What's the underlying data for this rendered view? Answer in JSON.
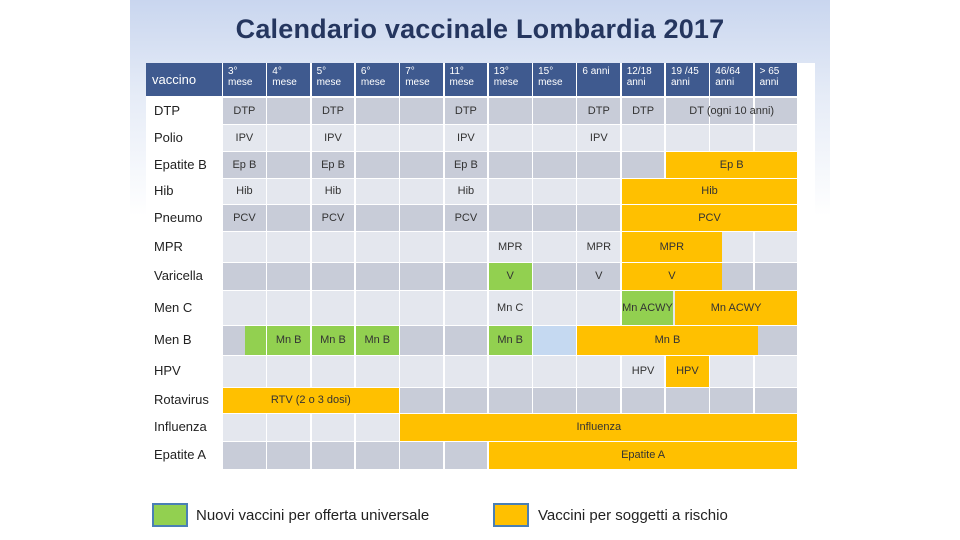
{
  "title": "Calendario vaccinale Lombardia 2017",
  "header": {
    "first": "vaccino",
    "columns": [
      [
        "3°",
        "mese"
      ],
      [
        "4°",
        "mese"
      ],
      [
        "5°",
        "mese"
      ],
      [
        "6°",
        "mese"
      ],
      [
        "7°",
        "mese"
      ],
      [
        "11°",
        "mese"
      ],
      [
        "13°",
        "mese"
      ],
      [
        "15°",
        "mese"
      ],
      [
        "6 anni",
        ""
      ],
      [
        "12/18",
        "anni"
      ],
      [
        "19 /45",
        "anni"
      ],
      [
        "46/64",
        "anni"
      ],
      [
        "> 65",
        "anni"
      ]
    ]
  },
  "rows": [
    {
      "label": "DTP",
      "cells": [
        {
          "text": "DTP",
          "col": 0,
          "span": 1
        },
        {
          "text": "DTP",
          "col": 2,
          "span": 1
        },
        {
          "text": "DTP",
          "col": 5,
          "span": 1
        },
        {
          "text": "DTP",
          "col": 8,
          "span": 1
        },
        {
          "text": "DTP",
          "col": 9,
          "span": 1
        },
        {
          "text": "DT (ogni 10 anni)",
          "col": 10,
          "span": 3
        }
      ]
    },
    {
      "label": "Polio",
      "cells": [
        {
          "text": "IPV",
          "col": 0,
          "span": 1
        },
        {
          "text": "IPV",
          "col": 2,
          "span": 1
        },
        {
          "text": "IPV",
          "col": 5,
          "span": 1
        },
        {
          "text": "IPV",
          "col": 8,
          "span": 1
        }
      ]
    },
    {
      "label": "Epatite B",
      "cells": [
        {
          "text": "Ep B",
          "col": 0,
          "span": 1
        },
        {
          "text": "Ep B",
          "col": 2,
          "span": 1
        },
        {
          "text": "Ep B",
          "col": 5,
          "span": 1
        },
        {
          "text": "Ep B",
          "col": 10,
          "span": 3,
          "fill": "orange"
        }
      ]
    },
    {
      "label": "Hib",
      "cells": [
        {
          "text": "Hib",
          "col": 0,
          "span": 1
        },
        {
          "text": "Hib",
          "col": 2,
          "span": 1
        },
        {
          "text": "Hib",
          "col": 5,
          "span": 1
        },
        {
          "text": "Hib",
          "col": 9,
          "span": 4,
          "fill": "orange"
        }
      ]
    },
    {
      "label": "Pneumo",
      "cells": [
        {
          "text": "PCV",
          "col": 0,
          "span": 1
        },
        {
          "text": "PCV",
          "col": 2,
          "span": 1
        },
        {
          "text": "PCV",
          "col": 5,
          "span": 1
        },
        {
          "text": "PCV",
          "col": 9,
          "span": 4,
          "fill": "orange"
        }
      ]
    },
    {
      "label": "MPR",
      "cells": [
        {
          "text": "MPR",
          "col": 6,
          "span": 1
        },
        {
          "text": "MPR",
          "col": 8,
          "span": 1
        },
        {
          "text": "MPR",
          "col": 9,
          "span": 2.3,
          "fill": "orange"
        }
      ]
    },
    {
      "label": "Varicella",
      "cells": [
        {
          "text": "V",
          "col": 6,
          "span": 1,
          "fill": "green"
        },
        {
          "text": "V",
          "col": 8,
          "span": 1
        },
        {
          "text": "V",
          "col": 9,
          "span": 2.3,
          "fill": "orange"
        }
      ]
    },
    {
      "label": "Men C",
      "cells": [
        {
          "text": "Mn C",
          "col": 6,
          "span": 1
        },
        {
          "text": "Mn ACWY",
          "col": 9,
          "span": 1.2,
          "fill": "green"
        },
        {
          "text": "Mn ACWY",
          "col": 10.2,
          "span": 2.8,
          "fill": "orange"
        }
      ]
    },
    {
      "label": "Men B",
      "cells": [
        {
          "text": "",
          "col": 0.5,
          "span": 0.5,
          "fill": "green"
        },
        {
          "text": "Mn B",
          "col": 1,
          "span": 1,
          "fill": "green"
        },
        {
          "text": "Mn B",
          "col": 2,
          "span": 1,
          "fill": "green"
        },
        {
          "text": "Mn B",
          "col": 3,
          "span": 1,
          "fill": "green"
        },
        {
          "text": "Mn B",
          "col": 6,
          "span": 1,
          "fill": "green"
        },
        {
          "text": "",
          "col": 7,
          "span": 1,
          "fill": "blue"
        },
        {
          "text": "Mn B",
          "col": 8,
          "span": 4.1,
          "fill": "orange"
        }
      ]
    },
    {
      "label": "HPV",
      "cells": [
        {
          "text": "HPV",
          "col": 9,
          "span": 1
        },
        {
          "text": "HPV",
          "col": 10,
          "span": 1,
          "fill": "orange"
        }
      ]
    },
    {
      "label": "Rotavirus",
      "cells": [
        {
          "text": "RTV (2 o 3 dosi)",
          "col": 0,
          "span": 4,
          "fill": "orange"
        }
      ]
    },
    {
      "label": "Influenza",
      "cells": [
        {
          "text": "Influenza",
          "col": 4,
          "span": 9,
          "fill": "orange"
        }
      ]
    },
    {
      "label": "Epatite A",
      "cells": [
        {
          "text": "Epatite A",
          "col": 6,
          "span": 7,
          "fill": "orange"
        }
      ]
    }
  ],
  "legend": [
    {
      "text": "Nuovi vaccini per offerta universale",
      "color": "#92d050"
    },
    {
      "text": "Vaccini per soggetti a rischio",
      "color": "#ffc000"
    }
  ],
  "colors": {
    "header": "#3f5a8f",
    "green": "#92d050",
    "orange": "#ffc000",
    "blue": "#c5d9f1"
  }
}
